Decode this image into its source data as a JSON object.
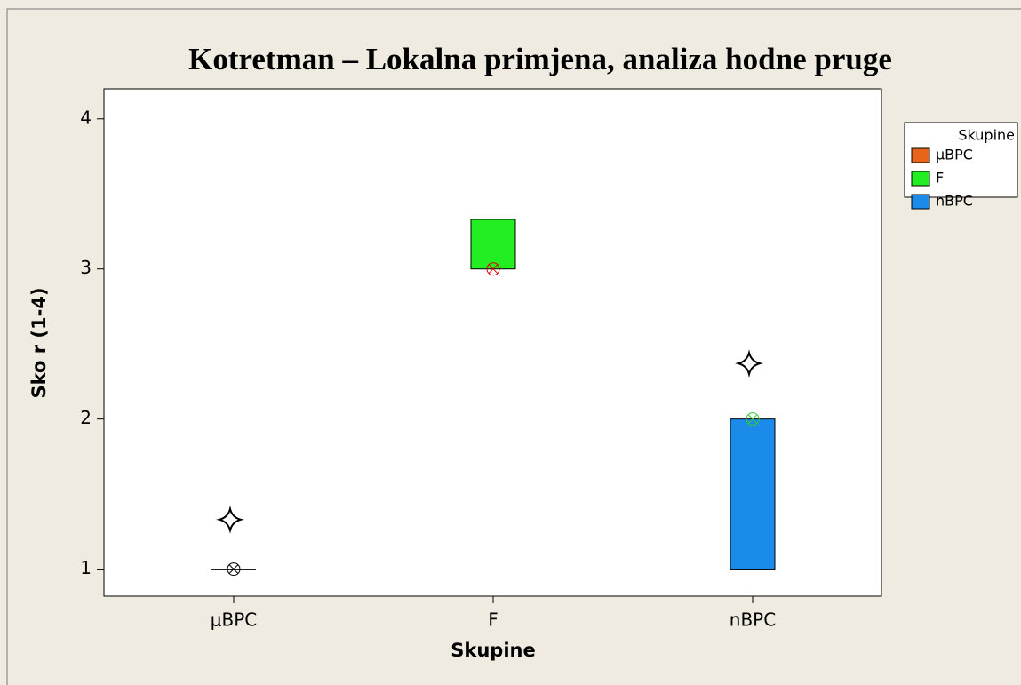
{
  "chart_data": {
    "type": "box",
    "title": "Kotretman – Lokalna primjena, analiza hodne pruge",
    "xlabel": "Skupine",
    "ylabel": "Sko r (1-4)",
    "legend_title": "Skupine",
    "categories": [
      "μBPC",
      "F",
      "nBPC"
    ],
    "series": [
      {
        "name": "μBPC",
        "color": "#e8641b",
        "marker_color": "#000000",
        "q1": 1,
        "q3": 1,
        "median": 1,
        "mean": 1.33
      },
      {
        "name": "F",
        "color": "#22ee22",
        "marker_color": "#e00000",
        "q1": 3,
        "q3": 3.33,
        "median": 3,
        "mean": null
      },
      {
        "name": "nBPC",
        "color": "#1a8be8",
        "marker_color": "#33cc33",
        "q1": 1,
        "q3": 2,
        "median": 2,
        "mean": 2.37
      }
    ],
    "ylim": [
      0.82,
      4.2
    ],
    "yticks": [
      1,
      2,
      3,
      4
    ],
    "legend": "right"
  }
}
